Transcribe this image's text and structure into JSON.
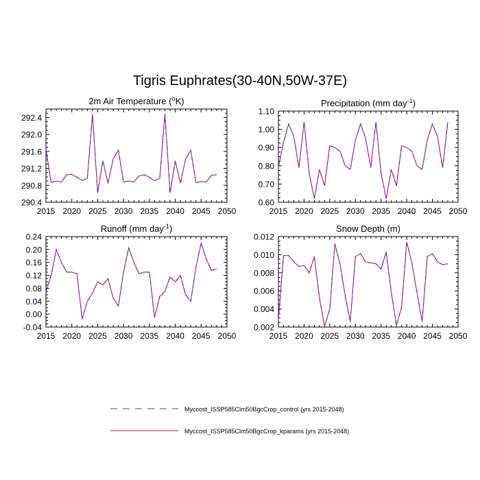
{
  "figure_title": "Tigris Euphrates(30-40N,50W-37E)",
  "colors": {
    "control": "#3333ff",
    "kparams": "#ff0000",
    "axis": "#000000"
  },
  "legend": [
    {
      "label": "Myccost_ISSP585Clm50BgcCrop_control (yrs 2015-2048)",
      "style": "dashed",
      "color": "#3333ff"
    },
    {
      "label": "Myccost_ISSP585Clm50BgcCrop_kparams (yrs 2015-2048)",
      "style": "solid",
      "color": "#ff0000"
    }
  ],
  "chart_data": [
    {
      "type": "line",
      "title": "2m Air Temperature (",
      "title_sup": "o",
      "title_after": "K)",
      "xlim": [
        2015,
        2050
      ],
      "ylim": [
        290.4,
        292.6
      ],
      "xticks": [
        2015,
        2020,
        2025,
        2030,
        2035,
        2040,
        2045,
        2050
      ],
      "xticklabels": [
        "2015",
        "2020",
        "2025",
        "2030",
        "2035",
        "2040",
        "2045",
        "2050"
      ],
      "yticks": [
        290.4,
        290.8,
        291.2,
        291.6,
        292.0,
        292.4
      ],
      "yticklabels": [
        "290.4",
        "290.8",
        "291.2",
        "291.6",
        "292.0",
        "292.4"
      ],
      "x": [
        2015,
        2016,
        2017,
        2018,
        2019,
        2020,
        2021,
        2022,
        2023,
        2024,
        2025,
        2026,
        2027,
        2028,
        2029,
        2030,
        2031,
        2032,
        2033,
        2034,
        2035,
        2036,
        2037,
        2038,
        2039,
        2040,
        2041,
        2042,
        2043,
        2044,
        2045,
        2046,
        2047,
        2048
      ],
      "series": [
        {
          "name": "control",
          "values": [
            291.65,
            290.87,
            290.9,
            290.88,
            291.05,
            291.06,
            290.99,
            290.92,
            290.96,
            292.48,
            290.62,
            291.38,
            290.85,
            291.42,
            291.63,
            290.88,
            290.9,
            290.88,
            291.02,
            291.05,
            290.99,
            290.91,
            290.96,
            292.48,
            290.62,
            291.38,
            290.85,
            291.42,
            291.63,
            290.86,
            290.89,
            290.88,
            291.04,
            291.05
          ]
        },
        {
          "name": "kparams",
          "values": [
            291.65,
            290.87,
            290.9,
            290.88,
            291.05,
            291.06,
            290.99,
            290.92,
            290.96,
            292.48,
            290.62,
            291.38,
            290.85,
            291.42,
            291.63,
            290.88,
            290.9,
            290.88,
            291.02,
            291.05,
            290.99,
            290.91,
            290.96,
            292.48,
            290.62,
            291.38,
            290.85,
            291.42,
            291.63,
            290.86,
            290.89,
            290.88,
            291.04,
            291.05
          ]
        }
      ]
    },
    {
      "type": "line",
      "title": "Precipitation (mm day",
      "title_sup": "-1",
      "title_after": ")",
      "xlim": [
        2015,
        2050
      ],
      "ylim": [
        0.6,
        1.1
      ],
      "xticks": [
        2015,
        2020,
        2025,
        2030,
        2035,
        2040,
        2045,
        2050
      ],
      "xticklabels": [
        "2015",
        "2020",
        "2025",
        "2030",
        "2035",
        "2040",
        "2045",
        "2050"
      ],
      "yticks": [
        0.6,
        0.7,
        0.8,
        0.9,
        1.0,
        1.1
      ],
      "yticklabels": [
        "0.60",
        "0.70",
        "0.80",
        "0.90",
        "1.00",
        "1.10"
      ],
      "x": [
        2015,
        2016,
        2017,
        2018,
        2019,
        2020,
        2021,
        2022,
        2023,
        2024,
        2025,
        2026,
        2027,
        2028,
        2029,
        2030,
        2031,
        2032,
        2033,
        2034,
        2035,
        2036,
        2037,
        2038,
        2039,
        2040,
        2041,
        2042,
        2043,
        2044,
        2045,
        2046,
        2047,
        2048
      ],
      "series": [
        {
          "name": "control",
          "values": [
            0.79,
            0.93,
            1.03,
            0.96,
            0.79,
            1.04,
            0.76,
            0.62,
            0.78,
            0.69,
            0.91,
            0.9,
            0.88,
            0.8,
            0.78,
            0.94,
            1.03,
            0.95,
            0.79,
            1.04,
            0.76,
            0.62,
            0.78,
            0.69,
            0.91,
            0.9,
            0.88,
            0.8,
            0.78,
            0.94,
            1.03,
            0.96,
            0.79,
            1.04
          ]
        },
        {
          "name": "kparams",
          "values": [
            0.79,
            0.93,
            1.03,
            0.96,
            0.79,
            1.04,
            0.76,
            0.62,
            0.78,
            0.69,
            0.91,
            0.9,
            0.88,
            0.8,
            0.78,
            0.94,
            1.03,
            0.95,
            0.79,
            1.04,
            0.76,
            0.62,
            0.78,
            0.69,
            0.91,
            0.9,
            0.88,
            0.8,
            0.78,
            0.94,
            1.03,
            0.96,
            0.79,
            1.04
          ]
        }
      ]
    },
    {
      "type": "line",
      "title": "Runoff (mm day",
      "title_sup": "-1",
      "title_after": ")",
      "xlim": [
        2015,
        2050
      ],
      "ylim": [
        -0.04,
        0.24
      ],
      "xticks": [
        2015,
        2020,
        2025,
        2030,
        2035,
        2040,
        2045,
        2050
      ],
      "xticklabels": [
        "2015",
        "2020",
        "2025",
        "2030",
        "2035",
        "2040",
        "2045",
        "2050"
      ],
      "yticks": [
        -0.04,
        0.0,
        0.04,
        0.08,
        0.12,
        0.16,
        0.2,
        0.24
      ],
      "yticklabels": [
        "-0.04",
        "0.00",
        "0.04",
        "0.08",
        "0.12",
        "0.16",
        "0.20",
        "0.24"
      ],
      "x": [
        2015,
        2016,
        2017,
        2018,
        2019,
        2020,
        2021,
        2022,
        2023,
        2024,
        2025,
        2026,
        2027,
        2028,
        2029,
        2030,
        2031,
        2032,
        2033,
        2034,
        2035,
        2036,
        2037,
        2038,
        2039,
        2040,
        2041,
        2042,
        2043,
        2044,
        2045,
        2046,
        2047,
        2048
      ],
      "series": [
        {
          "name": "control",
          "values": [
            0.07,
            0.12,
            0.2,
            0.16,
            0.13,
            0.13,
            0.125,
            -0.015,
            0.04,
            0.065,
            0.1,
            0.09,
            0.11,
            0.05,
            0.025,
            0.13,
            0.205,
            0.16,
            0.125,
            0.13,
            0.13,
            -0.01,
            0.055,
            0.07,
            0.115,
            0.1,
            0.12,
            0.06,
            0.04,
            0.145,
            0.22,
            0.17,
            0.135,
            0.14
          ]
        },
        {
          "name": "kparams",
          "values": [
            0.07,
            0.12,
            0.2,
            0.16,
            0.13,
            0.13,
            0.125,
            -0.015,
            0.04,
            0.065,
            0.1,
            0.09,
            0.11,
            0.05,
            0.025,
            0.13,
            0.205,
            0.16,
            0.125,
            0.13,
            0.13,
            -0.01,
            0.055,
            0.07,
            0.115,
            0.1,
            0.12,
            0.06,
            0.04,
            0.145,
            0.22,
            0.17,
            0.135,
            0.14
          ]
        }
      ]
    },
    {
      "type": "line",
      "title": "Snow Depth (m)",
      "title_sup": "",
      "title_after": "",
      "xlim": [
        2015,
        2050
      ],
      "ylim": [
        0.002,
        0.012
      ],
      "xticks": [
        2015,
        2020,
        2025,
        2030,
        2035,
        2040,
        2045,
        2050
      ],
      "xticklabels": [
        "2015",
        "2020",
        "2025",
        "2030",
        "2035",
        "2040",
        "2045",
        "2050"
      ],
      "yticks": [
        0.002,
        0.004,
        0.006,
        0.008,
        0.01,
        0.012
      ],
      "yticklabels": [
        "0.002",
        "0.004",
        "0.006",
        "0.008",
        "0.010",
        "0.012"
      ],
      "x": [
        2015,
        2016,
        2017,
        2018,
        2019,
        2020,
        2021,
        2022,
        2023,
        2024,
        2025,
        2026,
        2027,
        2028,
        2029,
        2030,
        2031,
        2032,
        2033,
        2034,
        2035,
        2036,
        2037,
        2038,
        2039,
        2040,
        2041,
        2042,
        2043,
        2044,
        2045,
        2046,
        2047,
        2048
      ],
      "series": [
        {
          "name": "control",
          "values": [
            0.0028,
            0.0099,
            0.0099,
            0.0092,
            0.0087,
            0.0088,
            0.008,
            0.0098,
            0.0052,
            0.0021,
            0.004,
            0.0112,
            0.009,
            0.0055,
            0.0026,
            0.0098,
            0.0101,
            0.0092,
            0.0091,
            0.009,
            0.0084,
            0.0103,
            0.0058,
            0.0022,
            0.0042,
            0.0114,
            0.0091,
            0.0058,
            0.0026,
            0.0098,
            0.0101,
            0.0092,
            0.0089,
            0.009
          ]
        },
        {
          "name": "kparams",
          "values": [
            0.0028,
            0.0099,
            0.0099,
            0.0092,
            0.0087,
            0.0088,
            0.008,
            0.0098,
            0.0052,
            0.0021,
            0.004,
            0.0112,
            0.009,
            0.0055,
            0.0026,
            0.0098,
            0.0101,
            0.0092,
            0.0091,
            0.009,
            0.0084,
            0.0103,
            0.0058,
            0.0022,
            0.0042,
            0.0114,
            0.0091,
            0.0058,
            0.0026,
            0.0098,
            0.0101,
            0.0092,
            0.0089,
            0.009
          ]
        }
      ]
    }
  ]
}
